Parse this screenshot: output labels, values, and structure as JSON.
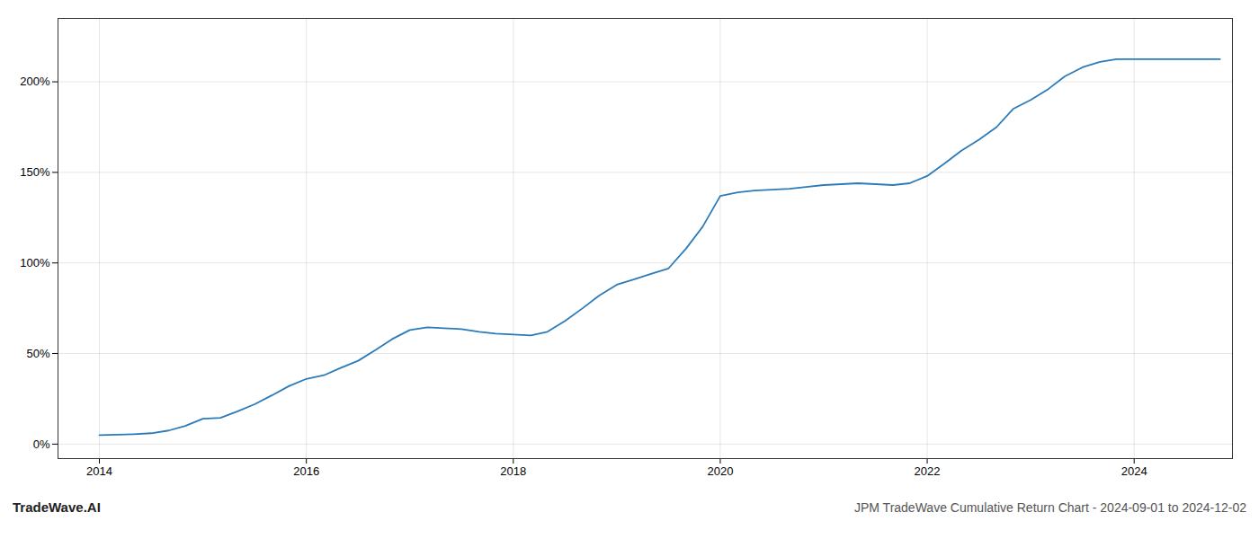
{
  "chart_data": {
    "type": "line",
    "title": "JPM TradeWave Cumulative Return Chart - 2024-09-01 to 2024-12-02",
    "annotations": [
      "TradeWave.AI"
    ],
    "color": "#2b7bba",
    "grid": true,
    "x": [
      2014.0,
      2014.17,
      2014.33,
      2014.5,
      2014.67,
      2014.83,
      2015.0,
      2015.17,
      2015.33,
      2015.5,
      2015.67,
      2015.83,
      2016.0,
      2016.17,
      2016.33,
      2016.5,
      2016.67,
      2016.83,
      2017.0,
      2017.17,
      2017.33,
      2017.5,
      2017.67,
      2017.83,
      2018.0,
      2018.17,
      2018.33,
      2018.5,
      2018.67,
      2018.83,
      2019.0,
      2019.17,
      2019.33,
      2019.5,
      2019.67,
      2019.83,
      2020.0,
      2020.17,
      2020.33,
      2020.5,
      2020.67,
      2020.83,
      2021.0,
      2021.17,
      2021.33,
      2021.5,
      2021.67,
      2021.83,
      2022.0,
      2022.17,
      2022.33,
      2022.5,
      2022.67,
      2022.83,
      2023.0,
      2023.17,
      2023.33,
      2023.5,
      2023.67,
      2023.83,
      2024.0,
      2024.17,
      2024.5,
      2024.83
    ],
    "values": [
      5.0,
      5.2,
      5.5,
      6.0,
      7.5,
      10.0,
      14.0,
      14.5,
      18.0,
      22.0,
      27.0,
      32.0,
      36.0,
      38.0,
      42.0,
      46.0,
      52.0,
      58.0,
      63.0,
      64.5,
      64.0,
      63.5,
      62.0,
      61.0,
      60.5,
      60.0,
      62.0,
      68.0,
      75.0,
      82.0,
      88.0,
      91.0,
      94.0,
      97.0,
      108.0,
      120.0,
      137.0,
      139.0,
      140.0,
      140.5,
      141.0,
      142.0,
      143.0,
      143.5,
      144.0,
      143.5,
      143.0,
      144.0,
      148.0,
      155.0,
      162.0,
      168.0,
      175.0,
      185.0,
      190.0,
      196.0,
      203.0,
      208.0,
      211.0,
      212.5,
      212.5,
      212.5,
      212.5,
      212.5
    ],
    "xlim": [
      2013.6,
      2024.95
    ],
    "xticks": [
      2014,
      2016,
      2018,
      2020,
      2022,
      2024
    ],
    "ylim": [
      -8,
      235
    ],
    "yticks": [
      {
        "value": 0,
        "label": "0%"
      },
      {
        "value": 50,
        "label": "50%"
      },
      {
        "value": 100,
        "label": "100%"
      },
      {
        "value": 150,
        "label": "150%"
      },
      {
        "value": 200,
        "label": "200%"
      }
    ]
  }
}
